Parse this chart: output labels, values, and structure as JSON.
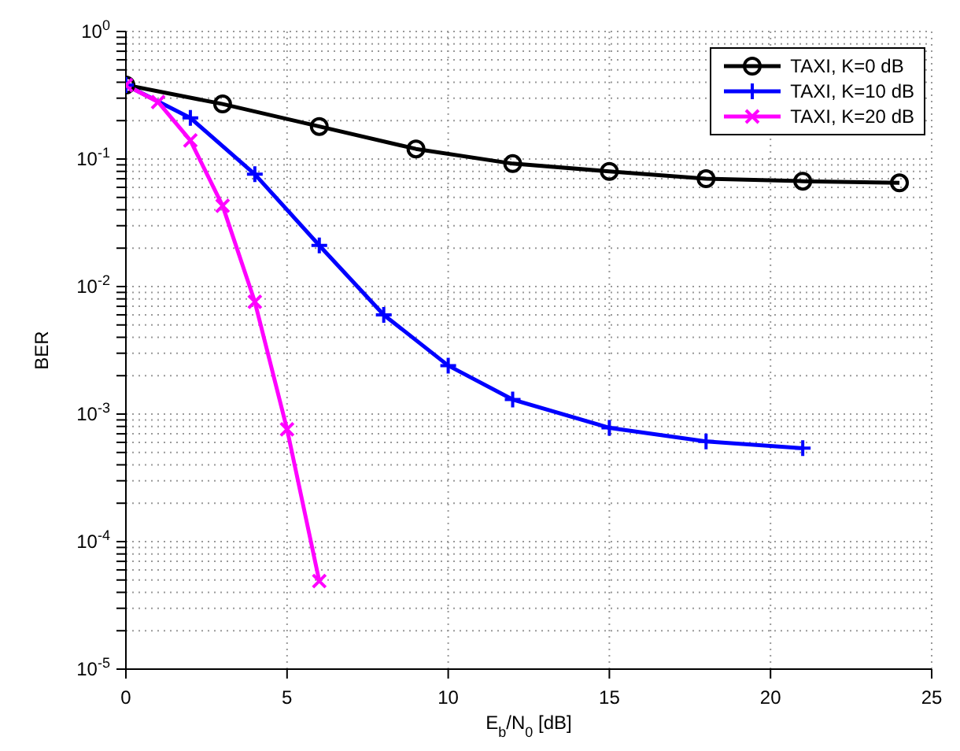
{
  "chart_data": {
    "type": "line",
    "xlabel": "E$_{b}$/N$_{0}$ [dB]",
    "ylabel": "BER",
    "log": "y",
    "grid": true,
    "legend": "top right",
    "line_style": "solid",
    "xlim": [
      0,
      25
    ],
    "xticks": [
      0,
      5,
      10,
      15,
      20,
      25
    ],
    "ylim": [
      1e-05,
      1
    ],
    "yticks": [
      {
        "value": 1e-05,
        "label": "10$^{-5}$"
      },
      {
        "value": 2e-05,
        "label": null
      },
      {
        "value": 3e-05,
        "label": null
      },
      {
        "value": 4e-05,
        "label": null
      },
      {
        "value": 5e-05,
        "label": null
      },
      {
        "value": 6e-05,
        "label": null
      },
      {
        "value": 7e-05,
        "label": null
      },
      {
        "value": 8e-05,
        "label": null
      },
      {
        "value": 9e-05,
        "label": null
      },
      {
        "value": 0.0001,
        "label": "10$^{-4}$"
      },
      {
        "value": 0.0002,
        "label": null
      },
      {
        "value": 0.0003,
        "label": null
      },
      {
        "value": 0.0004,
        "label": null
      },
      {
        "value": 0.0005,
        "label": null
      },
      {
        "value": 0.0006,
        "label": null
      },
      {
        "value": 0.0007,
        "label": null
      },
      {
        "value": 0.0008,
        "label": null
      },
      {
        "value": 0.0009,
        "label": null
      },
      {
        "value": 0.001,
        "label": "10$^{-3}$"
      },
      {
        "value": 0.002,
        "label": null
      },
      {
        "value": 0.003,
        "label": null
      },
      {
        "value": 0.004,
        "label": null
      },
      {
        "value": 0.005,
        "label": null
      },
      {
        "value": 0.006,
        "label": null
      },
      {
        "value": 0.007,
        "label": null
      },
      {
        "value": 0.008,
        "label": null
      },
      {
        "value": 0.009,
        "label": null
      },
      {
        "value": 0.01,
        "label": "10$^{-2}$"
      },
      {
        "value": 0.02,
        "label": null
      },
      {
        "value": 0.03,
        "label": null
      },
      {
        "value": 0.04,
        "label": null
      },
      {
        "value": 0.05,
        "label": null
      },
      {
        "value": 0.06,
        "label": null
      },
      {
        "value": 0.07,
        "label": null
      },
      {
        "value": 0.08,
        "label": null
      },
      {
        "value": 0.09,
        "label": null
      },
      {
        "value": 0.1,
        "label": "10$^{-1}$"
      },
      {
        "value": 0.2,
        "label": null
      },
      {
        "value": 0.3,
        "label": null
      },
      {
        "value": 0.4,
        "label": null
      },
      {
        "value": 0.5,
        "label": null
      },
      {
        "value": 0.6,
        "label": null
      },
      {
        "value": 0.7,
        "label": null
      },
      {
        "value": 0.8,
        "label": null
      },
      {
        "value": 0.9,
        "label": null
      },
      {
        "value": 1,
        "label": "10$^{0}$"
      }
    ],
    "series": [
      {
        "name": "TAXI, K=0 dB",
        "color": "#000000",
        "marker": "circle",
        "x": [
          0,
          3,
          6,
          9,
          12,
          15,
          18,
          21,
          24
        ],
        "values": [
          0.38,
          0.27,
          0.18,
          0.12,
          0.092,
          0.08,
          0.07,
          0.067,
          0.065
        ]
      },
      {
        "name": "TAXI, K=10 dB",
        "color": "#0000ff",
        "marker": "plus",
        "x": [
          0,
          2,
          4,
          6,
          8,
          10,
          12,
          15,
          18,
          21
        ],
        "values": [
          0.38,
          0.21,
          0.076,
          0.021,
          0.006,
          0.0024,
          0.0013,
          0.00078,
          0.00061,
          0.00054
        ]
      },
      {
        "name": "TAXI, K=20 dB",
        "color": "#ff00ff",
        "marker": "cross",
        "x": [
          0,
          1,
          2,
          3,
          4,
          5,
          6
        ],
        "values": [
          0.38,
          0.28,
          0.14,
          0.043,
          0.0076,
          0.00076,
          4.9e-05
        ]
      }
    ]
  }
}
